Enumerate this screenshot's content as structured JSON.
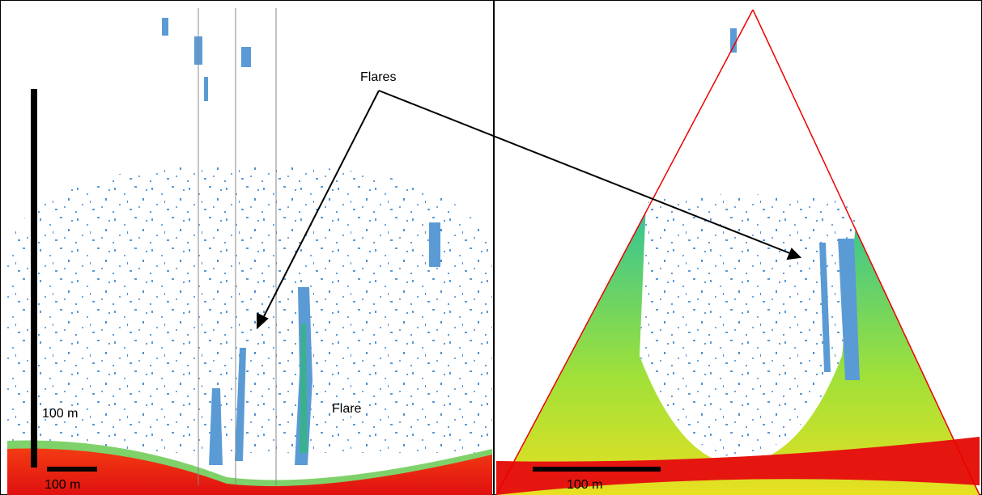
{
  "left_panel": {
    "vertical_scale_label": "100 m",
    "horizontal_scale_label": "100 m",
    "flare_label": "Flare"
  },
  "right_panel": {
    "scale_label": "100 m"
  },
  "annotation": {
    "label": "Flares"
  }
}
